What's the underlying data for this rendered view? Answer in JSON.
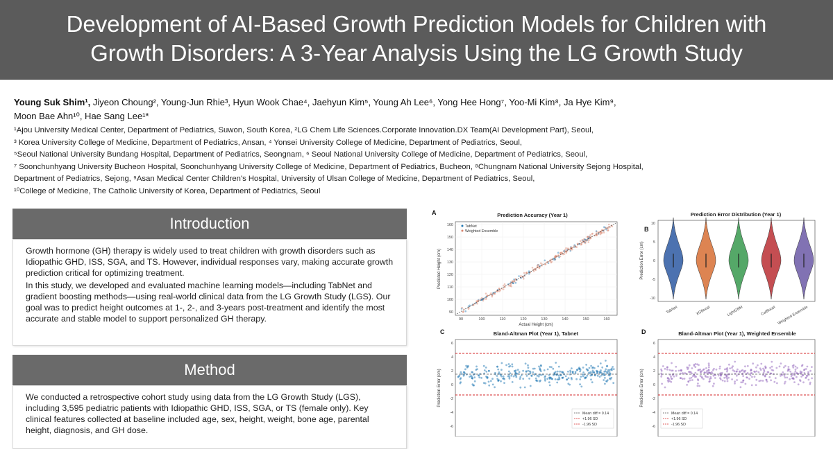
{
  "header": {
    "title_line1": "Development of AI-Based Growth Prediction Models for Children with",
    "title_line2": "Growth Disorders: A 3-Year Analysis Using the LG Growth Study"
  },
  "authors": {
    "line1_first": "Young Suk Shim¹,",
    "line1_rest": " Jiyeon Choung², Young-Jun Rhie³, Hyun Wook Chae⁴, Jaehyun Kim⁵, Young Ah Lee⁶, Yong Hee Hong⁷, Yoo-Mi Kim⁸, Ja Hye Kim⁹,",
    "line2": "Moon Bae Ahn¹⁰, Hae Sang Lee¹*"
  },
  "affiliations": [
    "¹Ajou University Medical Center, Department of Pediatrics, Suwon, South Korea, ²LG Chem Life Sciences.Corporate Innovation.DX Team(AI Development Part), Seoul,",
    "³ Korea University College of Medicine, Department of Pediatrics, Ansan, ⁴ Yonsei University College of Medicine, Department of Pediatrics, Seoul,",
    "⁵Seoul National University Bundang Hospital, Department of Pediatrics, Seongnam, ⁶ Seoul National University College of Medicine, Department of Pediatrics, Seoul,",
    "⁷ Soonchunhyang University Bucheon Hospital, Soonchunhyang University College of Medicine, Department of Pediatrics, Bucheon, ⁸Chungnam National University Sejong Hospital,",
    "Department of Pediatrics, Sejong, ⁹Asan Medical Center Children's Hospital, University of Ulsan College of Medicine, Department of Pediatrics, Seoul,",
    "¹⁰College of Medicine, The Catholic University of Korea, Department of Pediatrics, Seoul"
  ],
  "introduction": {
    "heading": "Introduction",
    "para1": "Growth hormone (GH) therapy is widely used to treat children with growth disorders such as Idiopathic GHD, ISS, SGA, and TS. However, individual responses vary, making accurate growth prediction critical for optimizing treatment.",
    "para2": "In this study, we developed and evaluated machine learning models—including TabNet and gradient boosting methods—using real-world clinical data from the LG Growth Study (LGS). Our goal was to predict height outcomes at 1-, 2-, and 3-years post-treatment and identify the most accurate and stable model to support personalized GH therapy."
  },
  "method": {
    "heading": "Method",
    "para1": "We conducted a retrospective cohort study using data from the LG Growth Study (LGS), including 3,595 pediatric patients with Idiopathic GHD, ISS, SGA, or TS (female only). Key clinical features collected at baseline included age, sex, height, weight, bone age, parental height, diagnosis, and GH dose."
  },
  "figures": {
    "colors": {
      "tabnet": "#1f77b4",
      "ensemble": "#9467bd",
      "scatter_points": "#d9826b",
      "limit_lines": "#d62728"
    },
    "panelA": {
      "letter": "A",
      "title": "Prediction Accuracy (Year 1)",
      "xlabel": "Actual Height (cm)",
      "ylabel": "Predicted Height (cm)",
      "legend": [
        "TabNet",
        "Weighted Ensemble"
      ],
      "xticks": [
        "90",
        "100",
        "110",
        "120",
        "130",
        "140",
        "150",
        "160"
      ],
      "yticks": [
        "90",
        "100",
        "110",
        "120",
        "130",
        "140",
        "150",
        "160"
      ]
    },
    "panelB": {
      "letter": "B",
      "title": "Prediction Error Distribution (Year 1)",
      "ylabel": "Prediction Error (cm)",
      "models": [
        "TabNet",
        "XGBoost",
        "LightGBM",
        "CatBoost",
        "Weighted Ensemble"
      ],
      "violin_colors": [
        "#4c72b0",
        "#dd8452",
        "#55a868",
        "#c44e52",
        "#8172b3"
      ],
      "yticks": [
        "10",
        "5",
        "0",
        "-5",
        "-10"
      ]
    },
    "panelC": {
      "letter": "C",
      "title": "Bland-Altman Plot (Year 1), Tabnet",
      "ylabel": "Prediction Error (cm)",
      "legend": [
        "Mean diff = 0.14",
        "+1.96 SD",
        "-1.96 SD"
      ],
      "yticks": [
        "6",
        "4",
        "2",
        "0",
        "-2",
        "-4",
        "-6"
      ]
    },
    "panelD": {
      "letter": "D",
      "title": "Bland-Altman Plot (Year 1), Weighted Ensemble",
      "ylabel": "Prediction Error (cm)",
      "legend": [
        "Mean diff = 0.14",
        "+1.96 SD",
        "-1.96 SD"
      ],
      "yticks": [
        "6",
        "4",
        "2",
        "0",
        "-2",
        "-4",
        "-6"
      ]
    }
  }
}
